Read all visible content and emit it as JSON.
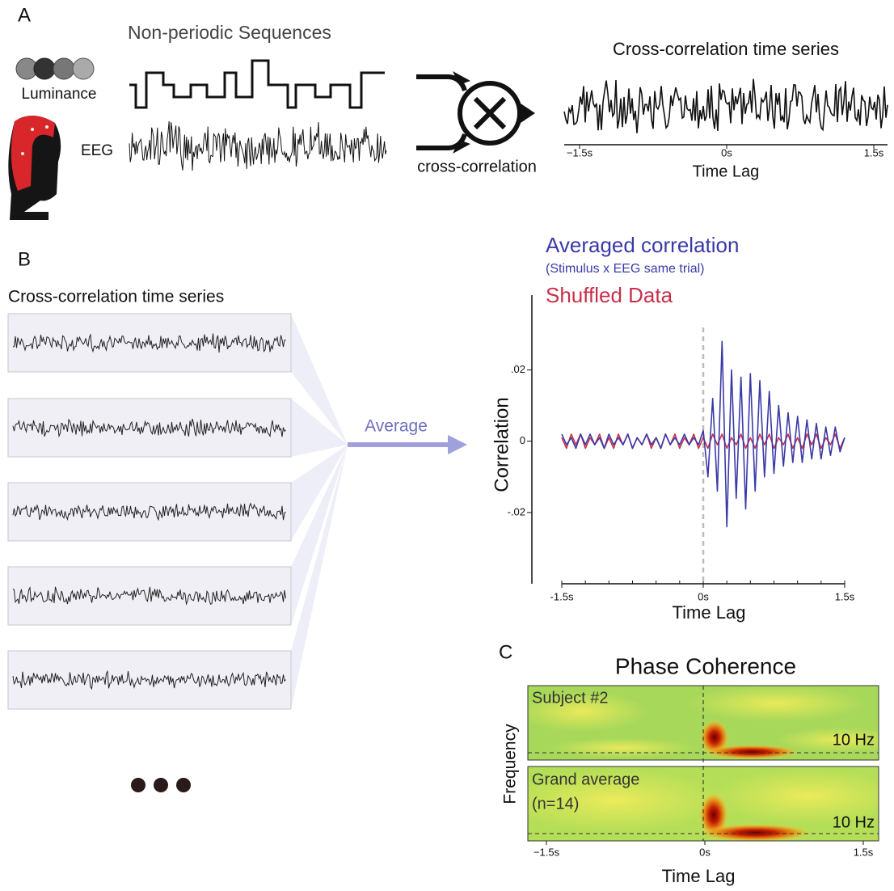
{
  "panel_a": {
    "label": "A",
    "luminance_label": "Luminance",
    "eeg_label": "EEG",
    "sequences_title": "Non-periodic Sequences",
    "operation_label": "cross-correlation",
    "output_title": "Cross-correlation time series",
    "x_axis_label": "Time Lag",
    "xlim": [
      -1.5,
      1.5
    ],
    "xticks": [
      {
        "value": -1.5,
        "label": "−1.5s"
      },
      {
        "value": 0,
        "label": "0s"
      },
      {
        "value": 1.5,
        "label": "1.5s"
      }
    ]
  },
  "panel_b": {
    "label": "B",
    "input_title": "Cross-correlation time series",
    "arrow_label": "Average",
    "chart_data": {
      "type": "line",
      "subtitle": "(Stimulus x EEG same trial)",
      "y_axis_label": "Correlation",
      "x_axis_label": "Time Lag",
      "xlim": [
        -1.5,
        1.5
      ],
      "ylim": [
        -0.04,
        0.041
      ],
      "xticks": [
        {
          "value": -1.5,
          "label": "-1.5s"
        },
        {
          "value": 0,
          "label": "0s"
        },
        {
          "value": 1.5,
          "label": "1.5s"
        }
      ],
      "yticks": [
        {
          "value": 0.02,
          "label": ".02"
        },
        0,
        {
          "value": -0.02,
          "label": "-.02"
        }
      ],
      "x": [
        -1.5,
        -1.45,
        -1.4,
        -1.35,
        -1.3,
        -1.25,
        -1.2,
        -1.15,
        -1.1,
        -1.05,
        -1,
        -0.95,
        -0.9,
        -0.85,
        -0.8,
        -0.75,
        -0.7,
        -0.65,
        -0.6,
        -0.55,
        -0.5,
        -0.45,
        -0.4,
        -0.35,
        -0.3,
        -0.25,
        -0.2,
        -0.15,
        -0.1,
        -0.05,
        0,
        0.05,
        0.1,
        0.15,
        0.2,
        0.25,
        0.3,
        0.35,
        0.4,
        0.45,
        0.5,
        0.55,
        0.6,
        0.65,
        0.7,
        0.75,
        0.8,
        0.85,
        0.9,
        0.95,
        1,
        1.05,
        1.1,
        1.15,
        1.2,
        1.25,
        1.3,
        1.35,
        1.4,
        1.45,
        1.5
      ],
      "series": [
        {
          "name": "Averaged correlation",
          "color": "#3a3aa8",
          "values": [
            0.002,
            -0.001,
            0.001,
            -0.002,
            0.002,
            -0.001,
            0.002,
            -0.001,
            0.001,
            -0.002,
            0.002,
            -0.001,
            0.001,
            -0.001,
            0.002,
            -0.002,
            0.001,
            -0.001,
            0.002,
            -0.001,
            0.001,
            -0.002,
            0.002,
            -0.001,
            0.001,
            -0.001,
            0.002,
            -0.001,
            0.001,
            -0.001,
            0.003,
            -0.01,
            0.012,
            -0.014,
            0.028,
            -0.024,
            0.02,
            -0.016,
            0.018,
            -0.019,
            0.019,
            -0.014,
            0.017,
            -0.01,
            0.014,
            -0.009,
            0.01,
            -0.007,
            0.008,
            -0.006,
            0.007,
            -0.006,
            0.006,
            -0.005,
            0.005,
            -0.005,
            0.004,
            -0.004,
            0.004,
            -0.003,
            0.001
          ]
        },
        {
          "name": "Shuffled Data",
          "color": "#c8304a",
          "values": [
            0.001,
            -0.002,
            0.002,
            -0.001,
            0.002,
            -0.002,
            0.001,
            -0.001,
            0.002,
            -0.002,
            0.001,
            -0.002,
            0.002,
            -0.001,
            0.002,
            -0.002,
            0.001,
            -0.001,
            0.002,
            -0.002,
            0.001,
            -0.002,
            0.002,
            -0.001,
            0.002,
            -0.002,
            0.001,
            -0.001,
            0.002,
            -0.002,
            0.001,
            -0.002,
            0.002,
            -0.001,
            0.002,
            -0.002,
            0.001,
            -0.001,
            0.002,
            -0.002,
            0.001,
            -0.002,
            0.002,
            -0.001,
            0.002,
            -0.002,
            0.001,
            -0.001,
            0.002,
            -0.002,
            0.001,
            -0.002,
            0.002,
            -0.001,
            0.002,
            -0.002,
            0.001,
            -0.001,
            0.002,
            -0.002,
            0.001
          ]
        }
      ]
    }
  },
  "panel_c": {
    "label": "C",
    "title": "Phase Coherence",
    "y_axis_label": "Frequency",
    "x_axis_label": "Time Lag",
    "xlim": [
      -1.5,
      1.5
    ],
    "xticks": [
      {
        "value": -1.5,
        "label": "−1.5s"
      },
      {
        "value": 0,
        "label": "0s"
      },
      {
        "value": 1.5,
        "label": "1.5s"
      }
    ],
    "maps": [
      {
        "label": "Subject #2",
        "band_label": "10 Hz"
      },
      {
        "label": "Grand average",
        "sublabel": "(n=14)",
        "band_label": "10 Hz"
      }
    ]
  }
}
